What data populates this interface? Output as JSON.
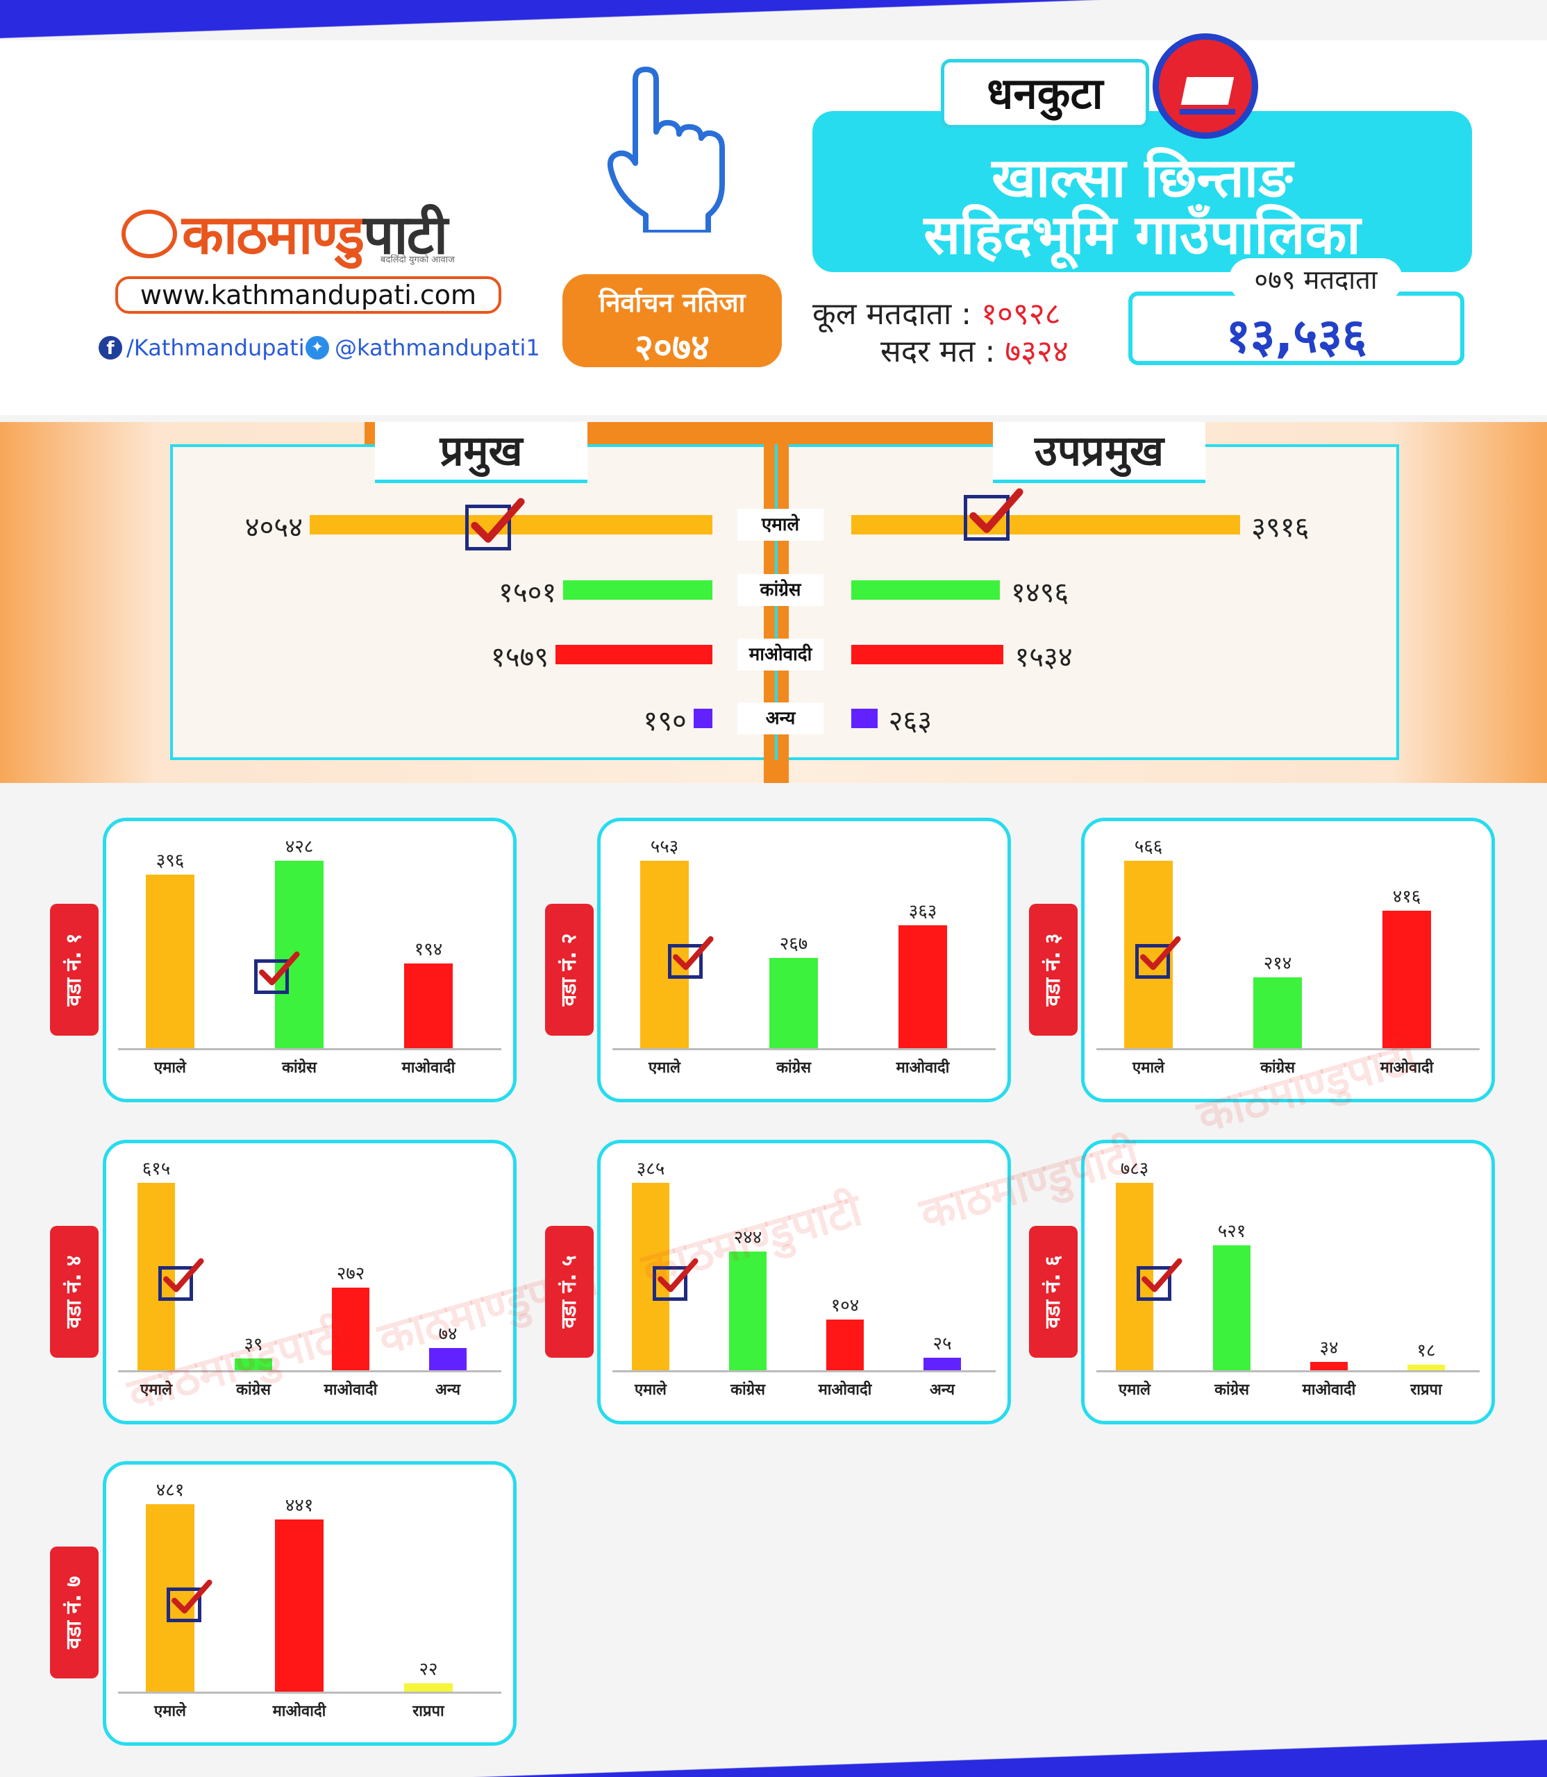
{
  "header": {
    "logo_main": "काठमाण्डु",
    "logo_pati": "पाटी",
    "logo_tagline": "बदलिंदो युगको आवाज",
    "website": "www.kathmandupati.com",
    "facebook": "/Kathmandupati",
    "twitter": "@kathmandupati1",
    "result_line1": "निर्वाचन नतिजा",
    "result_line2": "२०७४",
    "district": "धनकुटा",
    "title_line1": "खाल्सा छिन्ताङ",
    "title_line2": "सहिदभूमि गाउँपालिका",
    "total_voters_label": "कूल मतदाता :",
    "total_voters_value": "१०९२८",
    "valid_votes_label": "सदर मत :",
    "valid_votes_value": "७३२४",
    "voters079_label": "०७९ मतदाता",
    "voters079_value": "१३,५३६"
  },
  "colors": {
    "UML": "#fdb913",
    "Congress": "#3cf23c",
    "Maoist": "#ff1616",
    "Other": "#6222ff",
    "RPP": "#f5f53a",
    "accent": "#27dcee",
    "orange": "#f2891f"
  },
  "chart_data": [
    {
      "type": "bar",
      "orientation": "horizontal",
      "title": "प्रमुख",
      "categories": [
        "एमाले",
        "कांग्रेस",
        "माओवादी",
        "अन्य"
      ],
      "values": [
        4054,
        1501,
        1579,
        190
      ],
      "value_labels": [
        "४०५४",
        "१५०१",
        "१५७९",
        "१९०"
      ],
      "winner": "एमाले"
    },
    {
      "type": "bar",
      "orientation": "horizontal",
      "title": "उपप्रमुख",
      "categories": [
        "एमाले",
        "कांग्रेस",
        "माओवादी",
        "अन्य"
      ],
      "values": [
        3916,
        1496,
        1534,
        263
      ],
      "value_labels": [
        "३९१६",
        "१४९६",
        "१५३४",
        "२६३"
      ],
      "winner": "एमाले"
    },
    {
      "type": "bar",
      "ward": "वडा नं. १",
      "categories": [
        "एमाले",
        "कांग्रेस",
        "माओवादी"
      ],
      "values": [
        396,
        428,
        194
      ],
      "value_labels": [
        "३९६",
        "४२८",
        "१९४"
      ],
      "winner": "कांग्रेस"
    },
    {
      "type": "bar",
      "ward": "वडा नं. २",
      "categories": [
        "एमाले",
        "कांग्रेस",
        "माओवादी"
      ],
      "values": [
        553,
        267,
        363
      ],
      "value_labels": [
        "५५३",
        "२६७",
        "३६३"
      ],
      "winner": "एमाले"
    },
    {
      "type": "bar",
      "ward": "वडा नं. ३",
      "categories": [
        "एमाले",
        "कांग्रेस",
        "माओवादी"
      ],
      "values": [
        566,
        214,
        416
      ],
      "value_labels": [
        "५६६",
        "२१४",
        "४१६"
      ],
      "winner": "एमाले"
    },
    {
      "type": "bar",
      "ward": "वडा नं. ४",
      "categories": [
        "एमाले",
        "कांग्रेस",
        "माओवादी",
        "अन्य"
      ],
      "values": [
        615,
        39,
        272,
        74
      ],
      "value_labels": [
        "६१५",
        "३९",
        "२७२",
        "७४"
      ],
      "winner": "एमाले"
    },
    {
      "type": "bar",
      "ward": "वडा नं. ५",
      "categories": [
        "एमाले",
        "कांग्रेस",
        "माओवादी",
        "अन्य"
      ],
      "values": [
        385,
        244,
        104,
        25
      ],
      "value_labels": [
        "३८५",
        "२४४",
        "१०४",
        "२५"
      ],
      "winner": "एमाले"
    },
    {
      "type": "bar",
      "ward": "वडा नं. ६",
      "categories": [
        "एमाले",
        "कांग्रेस",
        "माओवादी",
        "राप्रपा"
      ],
      "values": [
        783,
        521,
        34,
        18
      ],
      "value_labels": [
        "७८३",
        "५२१",
        "३४",
        "१८"
      ],
      "winner": "एमाले"
    },
    {
      "type": "bar",
      "ward": "वडा नं. ७",
      "categories": [
        "एमाले",
        "माओवादी",
        "राप्रपा"
      ],
      "values": [
        481,
        441,
        22
      ],
      "value_labels": [
        "४८१",
        "४४१",
        "२२"
      ],
      "winner": "एमाले"
    }
  ]
}
